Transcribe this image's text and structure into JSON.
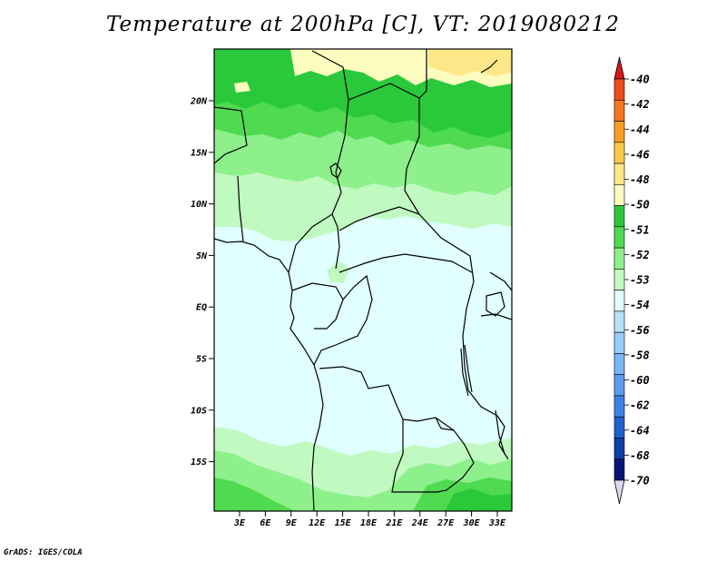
{
  "title": "Temperature at 200hPa [C], VT: 2019080212",
  "credit": "GrADS: IGES/COLA",
  "map": {
    "lat_labels": [
      "20N",
      "15N",
      "10N",
      "5N",
      "EQ",
      "5S",
      "10S",
      "15S"
    ],
    "lon_labels": [
      "3E",
      "6E",
      "9E",
      "12E",
      "15E",
      "18E",
      "21E",
      "24E",
      "27E",
      "30E",
      "33E"
    ]
  },
  "colorbar": {
    "labels": [
      "-40",
      "-42",
      "-44",
      "-46",
      "-48",
      "-50",
      "-51",
      "-52",
      "-53",
      "-54",
      "-56",
      "-58",
      "-60",
      "-62",
      "-64",
      "-68",
      "-70"
    ],
    "colors": [
      "#d7191c",
      "#ee4a1c",
      "#f9761c",
      "#fa9e25",
      "#fbc847",
      "#fde889",
      "#fdfcbf",
      "#2ac93c",
      "#4fda52",
      "#8df08b",
      "#c0fac0",
      "#e0fffe",
      "#b4e2fb",
      "#96cdf8",
      "#78b6f5",
      "#5a9cf0",
      "#3c82e6",
      "#1f61d0",
      "#0e3ea8",
      "#061476",
      "#d8d8f5"
    ]
  },
  "colors": {
    "dark_green": "#2ac93c",
    "mid_green": "#4fda52",
    "light_green": "#8df08b",
    "pale_green": "#c0fac0",
    "pale_cyan": "#e0fffe",
    "pale_yellow": "#fdfcbf",
    "yellow": "#fde889"
  }
}
